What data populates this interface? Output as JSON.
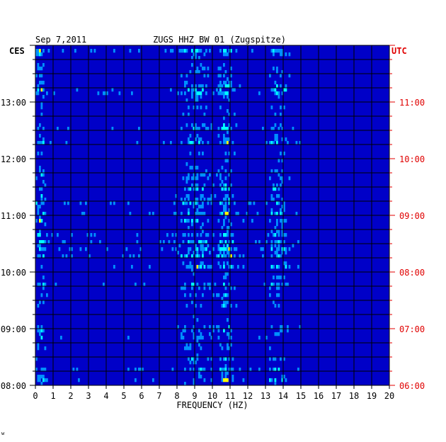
{
  "header": {
    "date": "Sep 7,2011",
    "station": "ZUGS HHZ BW 01 (Zugspitze)"
  },
  "footer_mark": "w",
  "chart_data": {
    "type": "heatmap",
    "title": "ZUGS HHZ BW 01 (Zugspitze)",
    "date": "Sep 7,2011",
    "xlabel": "FREQUENCY (HZ)",
    "xlim": [
      0,
      20
    ],
    "x_ticks": [
      "0",
      "1",
      "2",
      "3",
      "4",
      "5",
      "6",
      "7",
      "8",
      "9",
      "10",
      "11",
      "12",
      "13",
      "14",
      "15",
      "16",
      "17",
      "18",
      "19",
      "20"
    ],
    "left_axis": {
      "label": "CES",
      "range_hours": [
        8,
        14
      ],
      "tick_labels": [
        "13:00",
        "12:00",
        "11:00",
        "10:00",
        "09:00",
        "08:00"
      ],
      "tick_hours": [
        13,
        12,
        11,
        10,
        9,
        8
      ]
    },
    "right_axis": {
      "label": "UTC",
      "color": "#e00000",
      "tick_labels": [
        "11:00",
        "10:00",
        "09:00",
        "08:00",
        "07:00",
        "06:00"
      ],
      "tick_hours": [
        13,
        12,
        11,
        10,
        9,
        8
      ]
    },
    "grid": true,
    "colors": {
      "background": "#0000c8",
      "low": "#0022d8",
      "mid": "#0090ff",
      "high": "#00ffff",
      "peak": "#ffff00",
      "max": "#ff3000"
    },
    "energy_bands_hz": [
      {
        "center": 0.3,
        "width": 0.3,
        "strength": 0.7
      },
      {
        "center": 9.0,
        "width": 0.9,
        "strength": 0.6
      },
      {
        "center": 10.8,
        "width": 0.5,
        "strength": 0.7
      },
      {
        "center": 13.7,
        "width": 0.6,
        "strength": 0.55
      }
    ]
  }
}
